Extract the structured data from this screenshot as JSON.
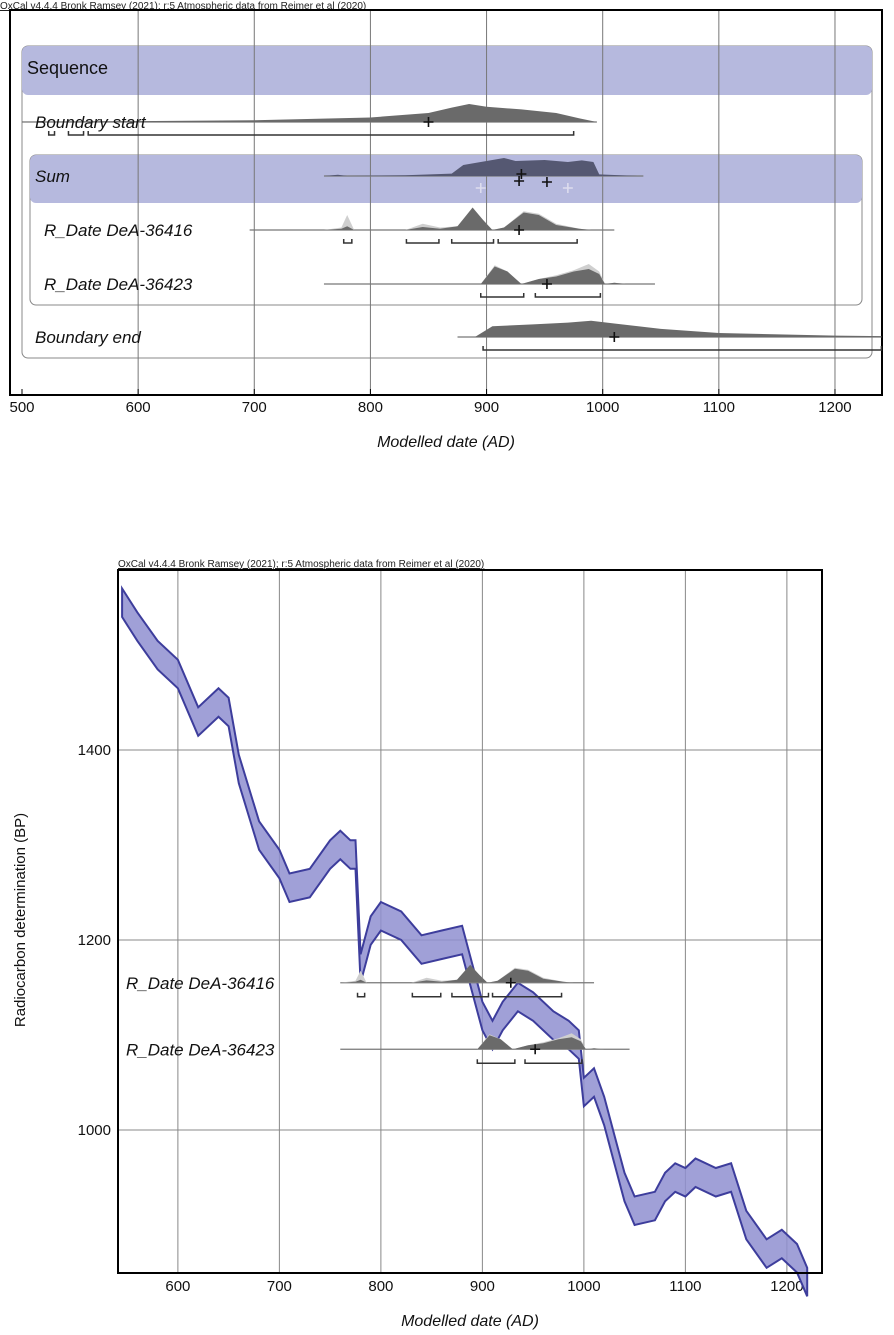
{
  "chart_data": [
    {
      "type": "area",
      "header": "OxCal v4.4.4 Bronk Ramsey (2021); r:5 Atmospheric data from Reimer et al (2020)",
      "xlabel": "Modelled date (AD)",
      "xlim": [
        500,
        1240
      ],
      "xticks": [
        500,
        600,
        700,
        800,
        900,
        1000,
        1100,
        1200
      ],
      "grid": true,
      "colors": {
        "band": "#b6b9de",
        "posterior": "#6a6a6a",
        "prior": "#cfcfcf",
        "sum": "#555872"
      },
      "groups": [
        {
          "label": "Sequence"
        },
        {
          "label": "Sum"
        }
      ],
      "rows": [
        {
          "label": "Boundary start",
          "line": [
            500,
            995
          ],
          "mean": 850,
          "posterior": [
            [
              500,
              0.02
            ],
            [
              600,
              0.05
            ],
            [
              700,
              0.1
            ],
            [
              800,
              0.25
            ],
            [
              850,
              0.5
            ],
            [
              870,
              0.8
            ],
            [
              885,
              1
            ],
            [
              900,
              0.85
            ],
            [
              930,
              0.7
            ],
            [
              960,
              0.5
            ],
            [
              980,
              0.2
            ],
            [
              995,
              0
            ]
          ],
          "ranges": [
            [
              523,
              528
            ],
            [
              540,
              553
            ],
            [
              557,
              975
            ]
          ]
        },
        {
          "label": "Sum",
          "line": [
            760,
            1035
          ],
          "means": [
            930,
            928,
            952
          ],
          "faint_means": [
            895,
            970
          ],
          "posterior": [
            [
              760,
              0
            ],
            [
              772,
              0.06
            ],
            [
              780,
              0
            ],
            [
              830,
              0.04
            ],
            [
              870,
              0.12
            ],
            [
              880,
              0.55
            ],
            [
              890,
              0.65
            ],
            [
              905,
              0.8
            ],
            [
              915,
              0.9
            ],
            [
              925,
              0.75
            ],
            [
              950,
              0.8
            ],
            [
              970,
              0.7
            ],
            [
              982,
              0.78
            ],
            [
              992,
              0.7
            ],
            [
              997,
              0.08
            ],
            [
              1010,
              0.05
            ],
            [
              1030,
              0
            ]
          ]
        },
        {
          "label": "R_Date DeA-36416",
          "line": [
            696,
            1010
          ],
          "mean": 928,
          "prior": [
            [
              760,
              0
            ],
            [
              775,
              0.1
            ],
            [
              780,
              0.6
            ],
            [
              786,
              0
            ],
            [
              830,
              0
            ],
            [
              845,
              0.25
            ],
            [
              860,
              0.1
            ],
            [
              875,
              0.15
            ],
            [
              888,
              0.85
            ],
            [
              897,
              0.4
            ],
            [
              905,
              0
            ],
            [
              915,
              0.1
            ],
            [
              932,
              0.75
            ],
            [
              945,
              0.65
            ],
            [
              960,
              0.25
            ],
            [
              980,
              0.05
            ],
            [
              990,
              0
            ]
          ],
          "posterior": [
            [
              760,
              0
            ],
            [
              775,
              0.05
            ],
            [
              780,
              0.15
            ],
            [
              786,
              0
            ],
            [
              830,
              0
            ],
            [
              845,
              0.12
            ],
            [
              860,
              0.05
            ],
            [
              875,
              0.15
            ],
            [
              888,
              0.9
            ],
            [
              897,
              0.4
            ],
            [
              905,
              0
            ],
            [
              915,
              0.1
            ],
            [
              932,
              0.7
            ],
            [
              945,
              0.6
            ],
            [
              960,
              0.2
            ],
            [
              980,
              0.05
            ],
            [
              990,
              0
            ]
          ],
          "ranges": [
            [
              777,
              784
            ],
            [
              831,
              859
            ],
            [
              870,
              906
            ],
            [
              910,
              978
            ]
          ]
        },
        {
          "label": "R_Date DeA-36423",
          "line": [
            760,
            1045
          ],
          "mean": 952,
          "prior": [
            [
              895,
              0
            ],
            [
              907,
              0.75
            ],
            [
              918,
              0.5
            ],
            [
              930,
              0
            ],
            [
              945,
              0.2
            ],
            [
              960,
              0.35
            ],
            [
              975,
              0.55
            ],
            [
              988,
              0.8
            ],
            [
              997,
              0.5
            ],
            [
              1002,
              0
            ],
            [
              1010,
              0.05
            ],
            [
              1020,
              0
            ]
          ],
          "posterior": [
            [
              895,
              0
            ],
            [
              907,
              0.7
            ],
            [
              918,
              0.5
            ],
            [
              930,
              0
            ],
            [
              945,
              0.2
            ],
            [
              960,
              0.3
            ],
            [
              975,
              0.5
            ],
            [
              988,
              0.6
            ],
            [
              997,
              0.4
            ],
            [
              1002,
              0
            ],
            [
              1010,
              0.05
            ],
            [
              1020,
              0
            ]
          ],
          "ranges": [
            [
              895,
              932
            ],
            [
              942,
              998
            ]
          ]
        },
        {
          "label": "Boundary end",
          "line": [
            875,
            1240
          ],
          "mean": 1010,
          "posterior": [
            [
              890,
              0
            ],
            [
              905,
              0.6
            ],
            [
              940,
              0.7
            ],
            [
              970,
              0.8
            ],
            [
              990,
              0.9
            ],
            [
              1010,
              0.75
            ],
            [
              1050,
              0.45
            ],
            [
              1100,
              0.22
            ],
            [
              1200,
              0.08
            ],
            [
              1240,
              0.05
            ]
          ],
          "ranges": [
            [
              897,
              1240
            ]
          ]
        }
      ]
    },
    {
      "type": "line",
      "header": "OxCal v4.4.4 Bronk Ramsey (2021); r:5 Atmospheric data from Reimer et al (2020)",
      "xlabel": "Modelled date (AD)",
      "ylabel": "Radiocarbon determination (BP)",
      "xlim": [
        541,
        1234
      ],
      "ylim": [
        850,
        1589
      ],
      "xticks": [
        600,
        700,
        800,
        900,
        1000,
        1100,
        1200
      ],
      "yticks": [
        1000,
        1200,
        1400
      ],
      "grid": true,
      "colors": {
        "curve": "#3d3d9c",
        "curve_fill": "#8f8fd0"
      },
      "curve": {
        "x": [
          545,
          560,
          580,
          600,
          620,
          640,
          650,
          660,
          680,
          700,
          710,
          730,
          750,
          760,
          770,
          775,
          780,
          790,
          800,
          820,
          840,
          860,
          880,
          890,
          900,
          910,
          920,
          935,
          950,
          970,
          985,
          995,
          1000,
          1010,
          1020,
          1030,
          1040,
          1050,
          1070,
          1080,
          1090,
          1100,
          1110,
          1130,
          1145,
          1160,
          1180,
          1195,
          1210,
          1220
        ],
        "bp": [
          1555,
          1530,
          1500,
          1480,
          1430,
          1450,
          1440,
          1380,
          1310,
          1280,
          1255,
          1260,
          1290,
          1300,
          1290,
          1290,
          1170,
          1210,
          1225,
          1215,
          1190,
          1195,
          1200,
          1160,
          1120,
          1100,
          1120,
          1140,
          1130,
          1110,
          1100,
          1090,
          1040,
          1050,
          1020,
          980,
          940,
          915,
          920,
          940,
          950,
          945,
          955,
          945,
          950,
          900,
          870,
          880,
          865,
          840
        ],
        "sigma": 15
      },
      "dates": [
        {
          "label": "R_Date DeA-36416",
          "bp": 1155,
          "row": 0
        },
        {
          "label": "R_Date DeA-36423",
          "bp": 1085,
          "row": 1
        }
      ]
    }
  ]
}
